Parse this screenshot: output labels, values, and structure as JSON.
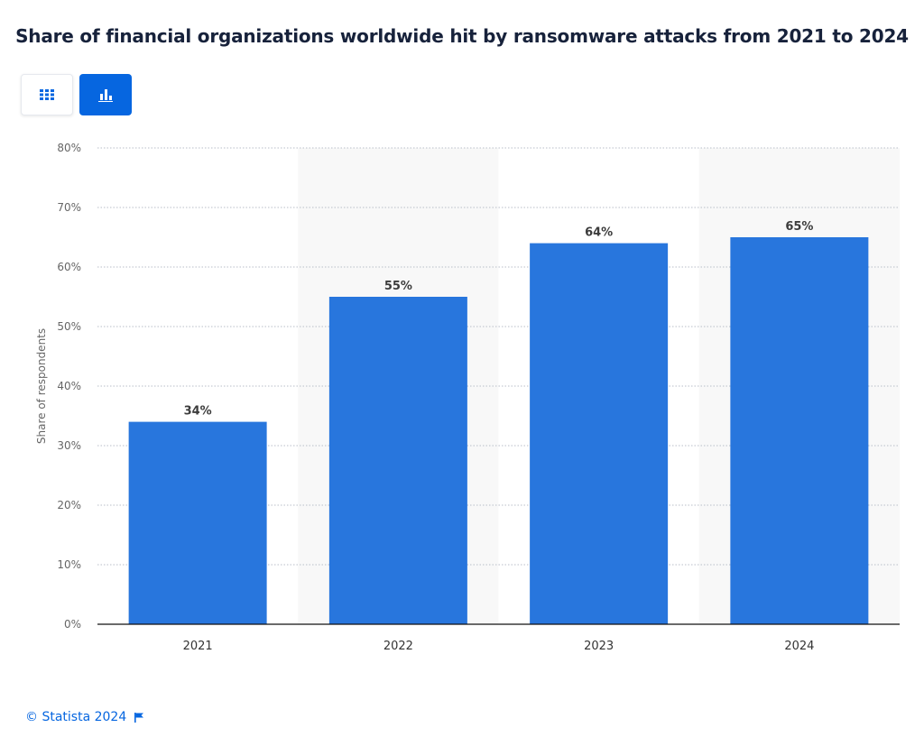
{
  "header": {
    "title": "Share of financial organizations worldwide hit by ransomware attacks from 2021 to 2024"
  },
  "toolbar": {
    "table_view_icon": "grid-icon",
    "chart_view_icon": "bar-chart-icon",
    "active_view": "chart"
  },
  "chart_data": {
    "type": "bar",
    "title": "Share of financial organizations worldwide hit by ransomware attacks from 2021 to 2024",
    "categories": [
      "2021",
      "2022",
      "2023",
      "2024"
    ],
    "values": [
      34,
      55,
      64,
      65
    ],
    "value_labels": [
      "34%",
      "55%",
      "64%",
      "65%"
    ],
    "xlabel": "",
    "ylabel": "Share of respondents",
    "ylim": [
      0,
      80
    ],
    "yticks": [
      "0%",
      "10%",
      "20%",
      "30%",
      "40%",
      "50%",
      "60%",
      "70%",
      "80%"
    ],
    "grid": true,
    "bar_color": "#2876dd",
    "alternate_band_color": "#f8f8f8"
  },
  "footer": {
    "copyright": "© Statista 2024",
    "flag_icon": "flag-icon"
  }
}
